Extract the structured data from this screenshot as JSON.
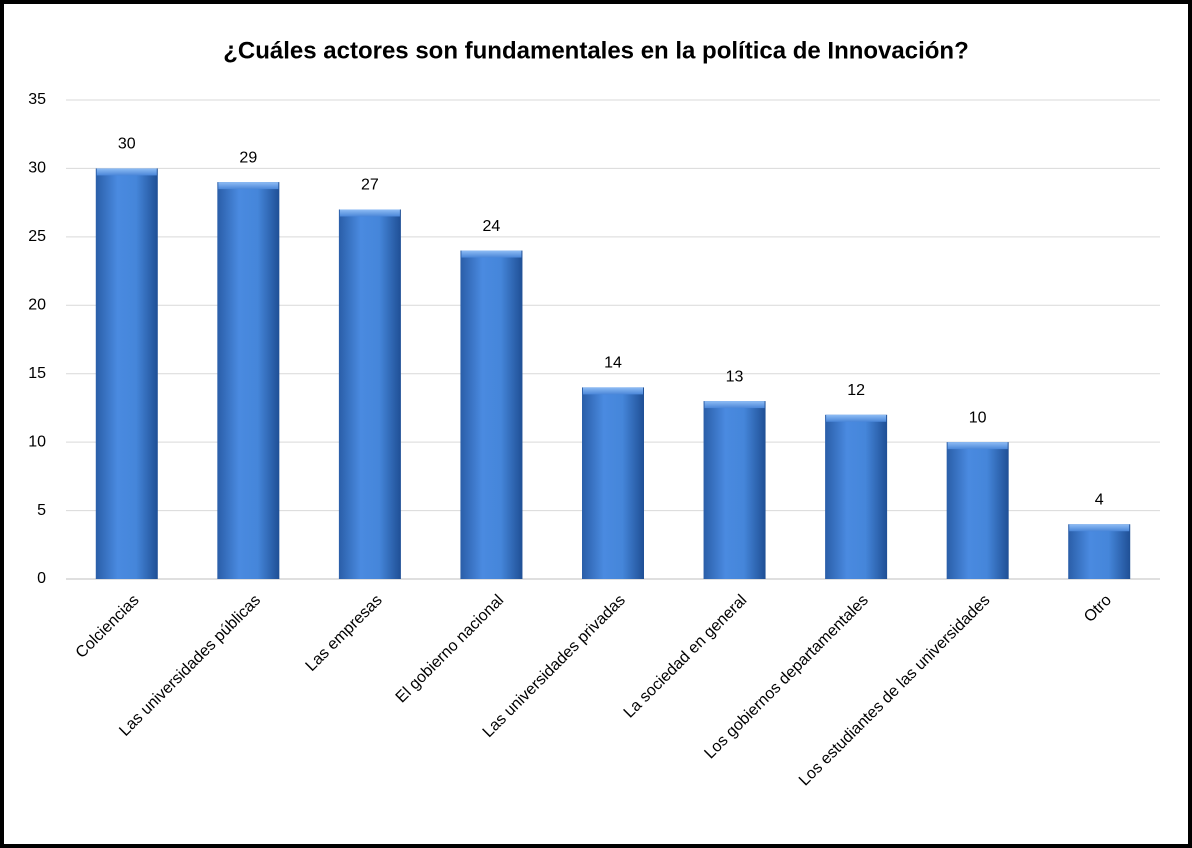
{
  "chart_data": {
    "type": "bar",
    "title": "¿Cuáles actores son fundamentales en la política de Innovación?",
    "categories": [
      "Colciencias",
      "Las universidades públicas",
      "Las empresas",
      "El gobierno nacional",
      "Las universidades privadas",
      "La sociedad en general",
      "Los gobiernos departamentales",
      "Los estudiantes de las universidades",
      "Otro"
    ],
    "values": [
      30,
      29,
      27,
      24,
      14,
      13,
      12,
      10,
      4
    ],
    "color": "#3f7fd0",
    "ylim": [
      0,
      35
    ],
    "yticks": [
      0,
      5,
      10,
      15,
      20,
      25,
      30,
      35
    ],
    "grid": true
  }
}
